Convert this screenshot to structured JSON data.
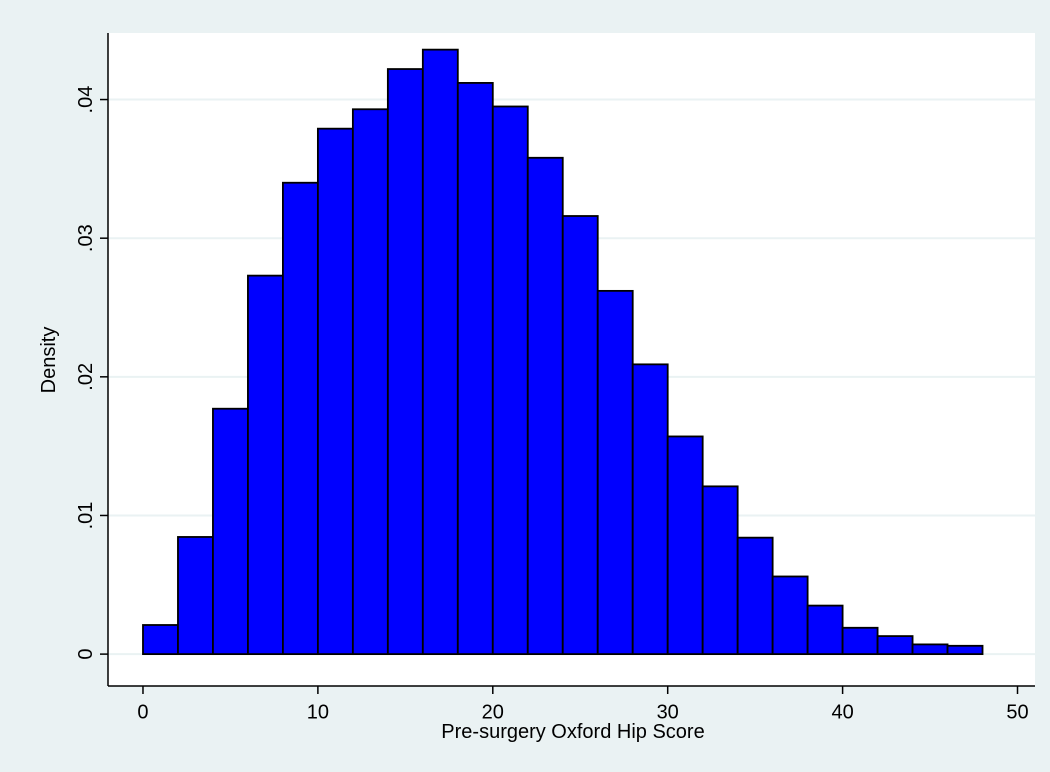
{
  "chart_data": {
    "type": "histogram",
    "x_label": "Pre-surgery Oxford Hip Score",
    "y_label": "Density",
    "bins": [
      0,
      2,
      4,
      6,
      8,
      10,
      12,
      14,
      16,
      18,
      20,
      22,
      24,
      26,
      28,
      30,
      32,
      34,
      36,
      38,
      40,
      42,
      44,
      46,
      48
    ],
    "values": [
      0.0021,
      0.00845,
      0.0177,
      0.0273,
      0.034,
      0.0379,
      0.0393,
      0.0422,
      0.0436,
      0.0412,
      0.0395,
      0.0358,
      0.0316,
      0.0262,
      0.0209,
      0.0157,
      0.0121,
      0.0084,
      0.0056,
      0.0035,
      0.0019,
      0.0013,
      0.0007,
      0.0006
    ],
    "color": "#0000ff",
    "xlim": [
      -2,
      51
    ],
    "ylim": [
      -0.0023,
      0.0448
    ],
    "xticks": [
      0,
      10,
      20,
      30,
      40,
      50
    ],
    "yticks": [
      0,
      {
        "value": 0.01,
        "label": ".01"
      },
      {
        "value": 0.02,
        "label": ".02"
      },
      {
        "value": 0.03,
        "label": ".03"
      },
      {
        "value": 0.04,
        "label": ".04"
      }
    ],
    "grid": true
  }
}
